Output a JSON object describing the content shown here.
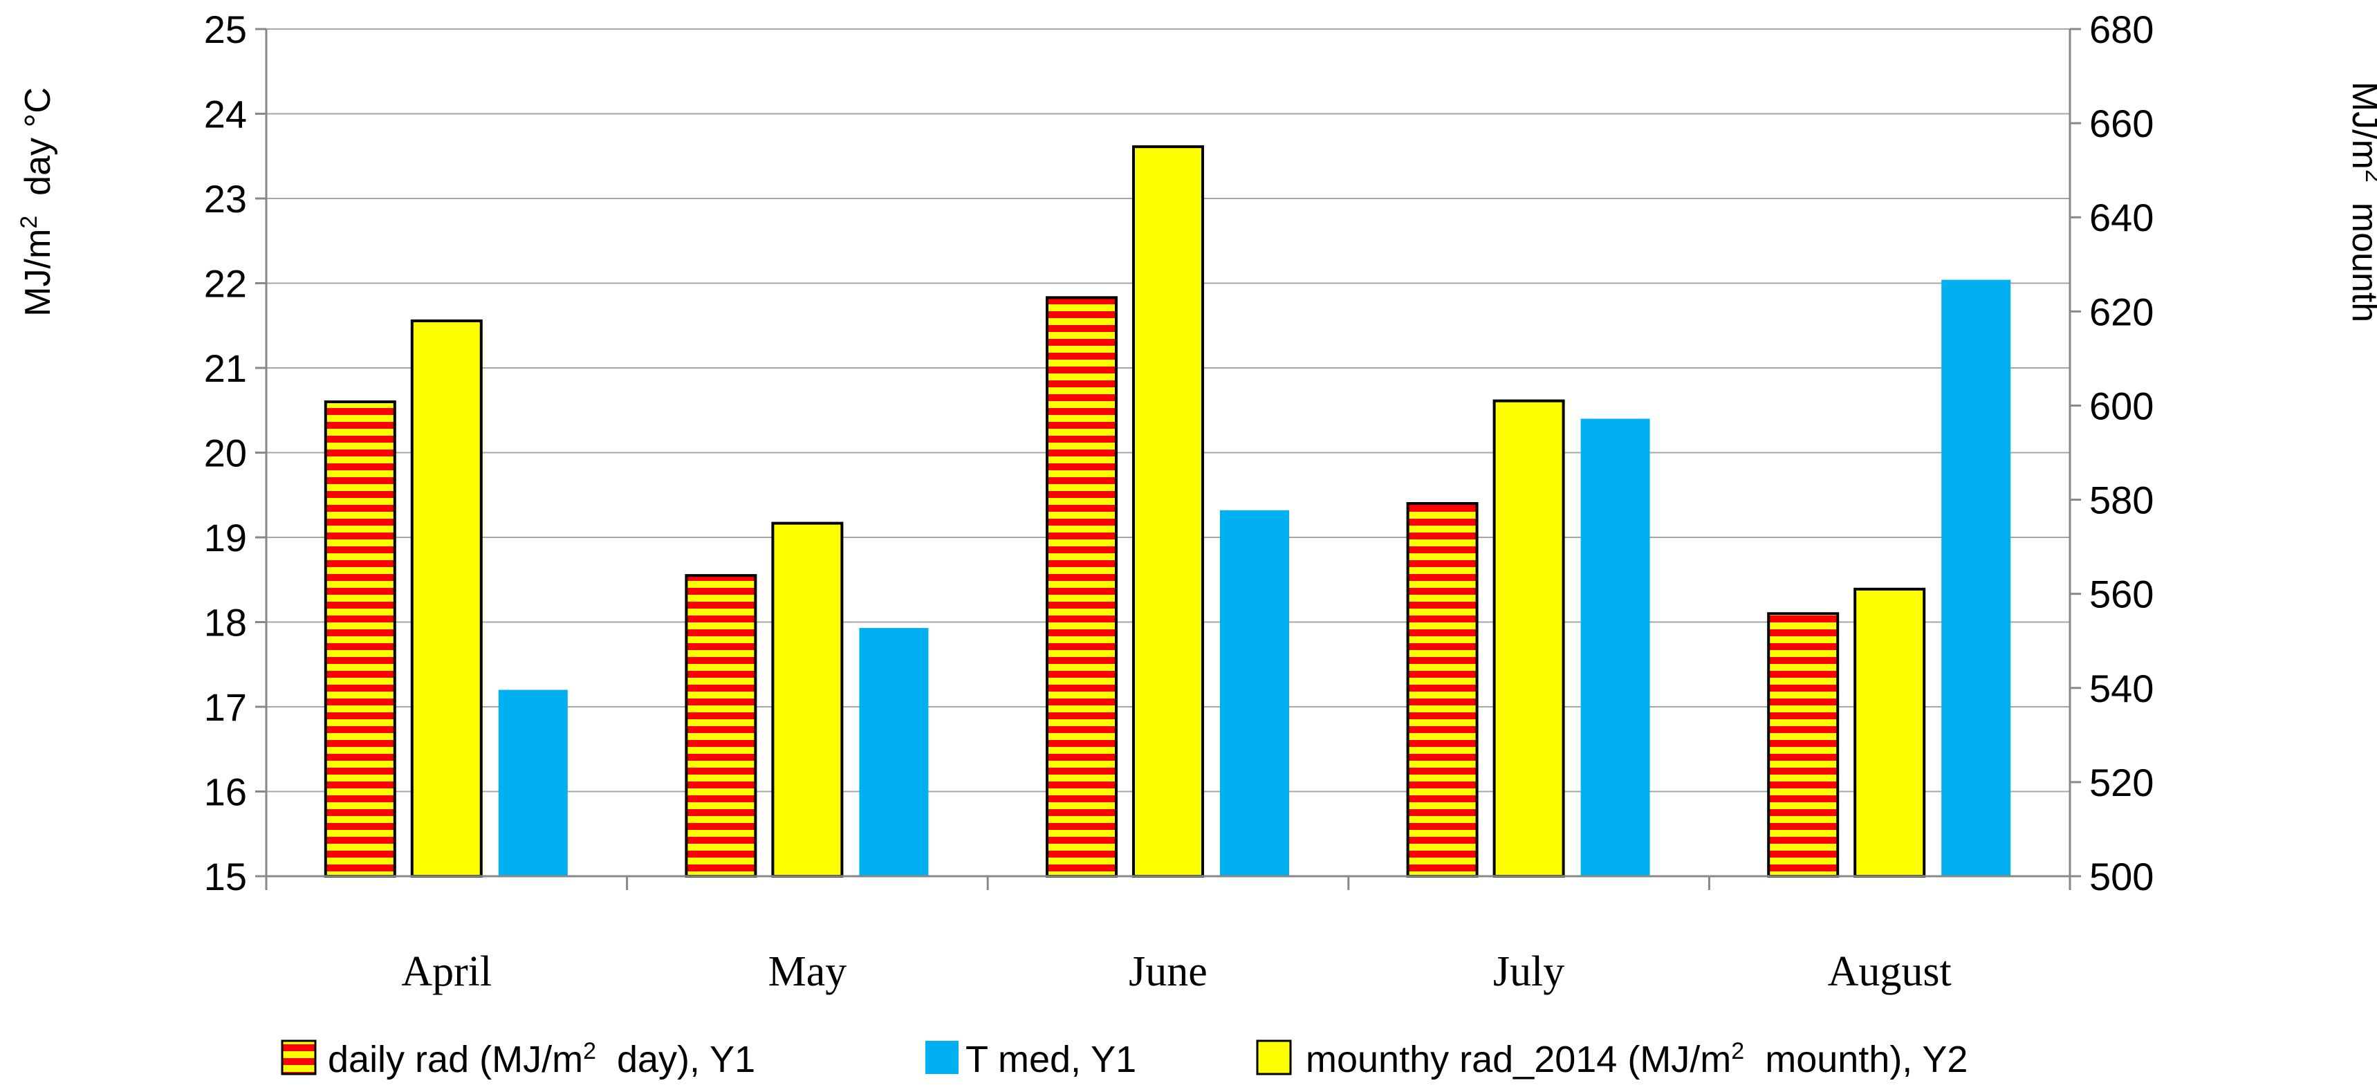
{
  "chart_data": {
    "type": "bar",
    "categories": [
      "April",
      "May",
      "June",
      "July",
      "August"
    ],
    "series": [
      {
        "name": "daily rad (MJ/m2  day), Y1",
        "axis": "y1",
        "values": [
          20.6,
          18.55,
          21.83,
          19.4,
          18.1
        ],
        "pattern": "red-yellow-stripes"
      },
      {
        "name": "mounthy rad_2014 (MJ/m2  mounth), Y2",
        "axis": "y2",
        "values": [
          618,
          575,
          655,
          601,
          561
        ],
        "color": "#ffff00"
      },
      {
        "name": "T med, Y1",
        "axis": "y1",
        "values": [
          17.2,
          17.93,
          19.32,
          20.4,
          22.04
        ],
        "color": "#00b0f0"
      }
    ],
    "y1": {
      "min": 15,
      "max": 25,
      "step": 1,
      "ticks": [
        "15",
        "16",
        "17",
        "18",
        "19",
        "20",
        "21",
        "22",
        "23",
        "24",
        "25"
      ]
    },
    "y2": {
      "min": 500,
      "max": 680,
      "step": 20,
      "ticks": [
        "500",
        "520",
        "540",
        "560",
        "580",
        "600",
        "620",
        "640",
        "660",
        "680"
      ]
    },
    "ylabel": {
      "prefix": "MJ/m",
      "sup": "2",
      "suffix": "  day °C"
    },
    "y2label": {
      "prefix": "MJ/m",
      "sup": "2",
      "suffix": "  mounth"
    },
    "legend": [
      {
        "prefix": "daily rad (MJ/m",
        "sup": "2",
        "suffix": "  day), Y1"
      },
      {
        "prefix": "T med, Y1",
        "sup": "",
        "suffix": ""
      },
      {
        "prefix": "mounthy rad_2014 (MJ/m",
        "sup": "2",
        "suffix": "  mounth), Y2"
      }
    ],
    "grid": true,
    "legend_position": "bottom"
  }
}
